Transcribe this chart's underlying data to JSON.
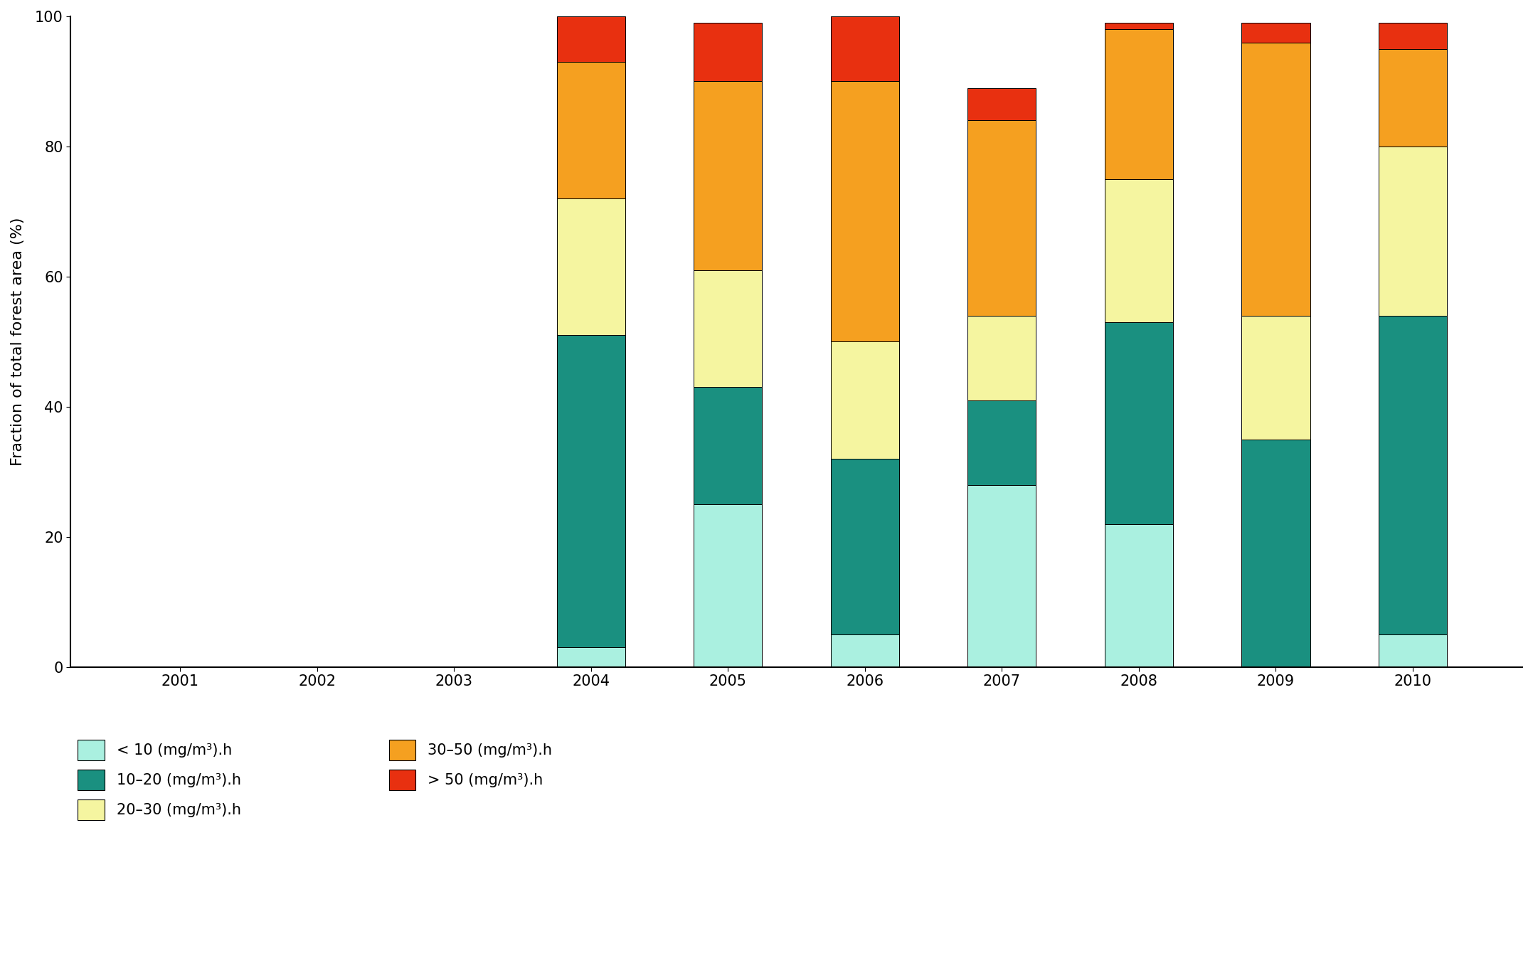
{
  "years": [
    2001,
    2002,
    2003,
    2004,
    2005,
    2006,
    2007,
    2008,
    2009,
    2010
  ],
  "segments": {
    "lt10": [
      0,
      0,
      0,
      3,
      25,
      5,
      28,
      22,
      0,
      5
    ],
    "10_20": [
      0,
      0,
      0,
      48,
      18,
      27,
      13,
      31,
      35,
      49
    ],
    "20_30": [
      0,
      0,
      0,
      21,
      18,
      18,
      13,
      22,
      19,
      26
    ],
    "30_50": [
      0,
      0,
      0,
      21,
      29,
      40,
      30,
      23,
      42,
      15
    ],
    "gt50": [
      0,
      0,
      0,
      7,
      9,
      10,
      5,
      1,
      3,
      4
    ]
  },
  "colors": {
    "lt10": "#aaf0e0",
    "10_20": "#1a9080",
    "20_30": "#f5f5a0",
    "30_50": "#f5a020",
    "gt50": "#e83010"
  },
  "bar_width": 0.5,
  "ylabel": "Fraction of total forest area (%)",
  "ylim": [
    0,
    100
  ],
  "yticks": [
    0,
    20,
    40,
    60,
    80,
    100
  ],
  "xlim": [
    2000.2,
    2010.8
  ],
  "legend_labels": {
    "lt10": "< 10 (mg/m³).h",
    "10_20": "10–20 (mg/m³).h",
    "20_30": "20–30 (mg/m³).h",
    "30_50": "30–50 (mg/m³).h",
    "gt50": "> 50 (mg/m³).h"
  },
  "background_color": "#ffffff",
  "figsize": [
    21.55,
    13.75
  ],
  "dpi": 100
}
